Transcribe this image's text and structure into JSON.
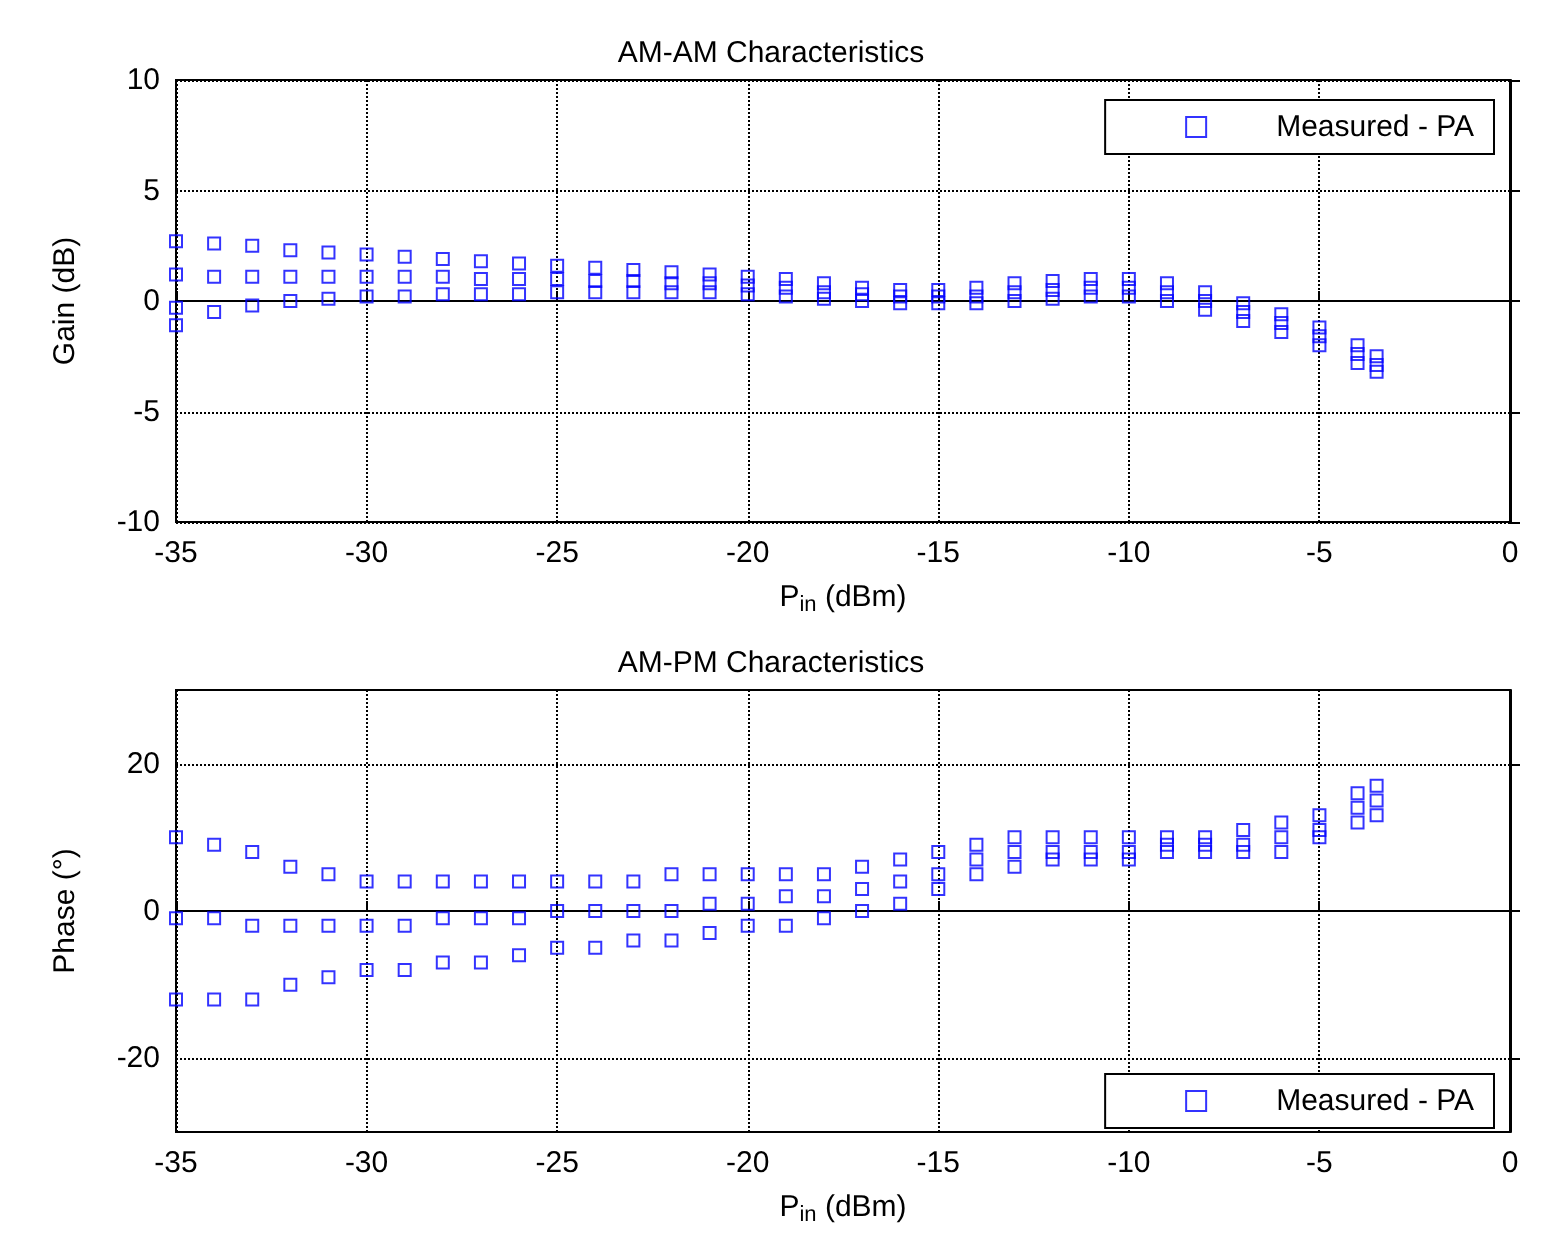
{
  "chart_data": [
    {
      "type": "scatter",
      "title": "AM-AM Characteristics",
      "xlabel": "P$_{in}$ (dBm)",
      "ylabel": "Gain (dB)",
      "xlim": [
        -35,
        0
      ],
      "xticks": [
        -35,
        -30,
        -25,
        -20,
        -15,
        -10,
        -5,
        0
      ],
      "ylim": [
        -10,
        10
      ],
      "yticks": [
        -10,
        -5,
        0,
        5,
        10
      ],
      "grid": true,
      "legend": "top right",
      "marker": "square",
      "series": [
        {
          "name": "Measured - PA",
          "color": "#0000ff",
          "x": [
            -35,
            -35,
            -35,
            -35,
            -34,
            -34,
            -34,
            -33,
            -33,
            -33,
            -32,
            -32,
            -32,
            -31,
            -31,
            -31,
            -30,
            -30,
            -30,
            -29,
            -29,
            -29,
            -28,
            -28,
            -28,
            -27,
            -27,
            -27,
            -26,
            -26,
            -26,
            -25,
            -25,
            -25,
            -24,
            -24,
            -24,
            -23,
            -23,
            -23,
            -22,
            -22,
            -22,
            -21,
            -21,
            -21,
            -20,
            -20,
            -20,
            -19,
            -19,
            -19,
            -18,
            -18,
            -18,
            -17,
            -17,
            -17,
            -16,
            -16,
            -16,
            -15,
            -15,
            -15,
            -14,
            -14,
            -14,
            -13,
            -13,
            -13,
            -12,
            -12,
            -12,
            -11,
            -11,
            -11,
            -10,
            -10,
            -10,
            -9,
            -9,
            -9,
            -8,
            -8,
            -8,
            -7,
            -7,
            -7,
            -6,
            -6,
            -6,
            -5,
            -5,
            -5,
            -4,
            -4,
            -4,
            -3.5,
            -3.5,
            -3.5
          ],
          "values": [
            -1.1,
            -0.3,
            1.2,
            2.7,
            -0.5,
            1.1,
            2.6,
            -0.2,
            1.1,
            2.5,
            0,
            1.1,
            2.3,
            0.1,
            1.1,
            2.2,
            0.2,
            1.1,
            2.1,
            0.2,
            1.1,
            2.0,
            0.3,
            1.1,
            1.9,
            0.3,
            1.0,
            1.8,
            0.3,
            1.0,
            1.7,
            0.4,
            1.0,
            1.6,
            0.4,
            0.9,
            1.5,
            0.4,
            0.9,
            1.4,
            0.4,
            0.8,
            1.3,
            0.4,
            0.8,
            1.2,
            0.3,
            0.7,
            1.1,
            0.2,
            0.6,
            1.0,
            0.1,
            0.4,
            0.8,
            0,
            0.3,
            0.6,
            -0.1,
            0.2,
            0.5,
            -0.1,
            0.2,
            0.5,
            -0.1,
            0.2,
            0.6,
            0,
            0.4,
            0.8,
            0.1,
            0.5,
            0.9,
            0.2,
            0.6,
            1.0,
            0.2,
            0.6,
            1.0,
            0,
            0.4,
            0.8,
            -0.4,
            0,
            0.4,
            -0.9,
            -0.5,
            -0.1,
            -1.4,
            -1.0,
            -0.6,
            -2.0,
            -1.6,
            -1.2,
            -2.8,
            -2.4,
            -2.0,
            -3.2,
            -2.9,
            -2.5
          ]
        }
      ]
    },
    {
      "type": "scatter",
      "title": "AM-PM Characteristics",
      "xlabel": "P$_{in}$ (dBm)",
      "ylabel": "Phase (°)",
      "xlim": [
        -35,
        0
      ],
      "xticks": [
        -35,
        -30,
        -25,
        -20,
        -15,
        -10,
        -5,
        0
      ],
      "ylim": [
        -30,
        30
      ],
      "yticks": [
        -20,
        0,
        20
      ],
      "grid": true,
      "legend": "bottom right",
      "marker": "square",
      "series": [
        {
          "name": "Measured - PA",
          "color": "#0000ff",
          "x": [
            -35,
            -35,
            -35,
            -34,
            -34,
            -34,
            -33,
            -33,
            -33,
            -32,
            -32,
            -32,
            -31,
            -31,
            -31,
            -30,
            -30,
            -30,
            -29,
            -29,
            -29,
            -28,
            -28,
            -28,
            -27,
            -27,
            -27,
            -26,
            -26,
            -26,
            -25,
            -25,
            -25,
            -24,
            -24,
            -24,
            -23,
            -23,
            -23,
            -22,
            -22,
            -22,
            -21,
            -21,
            -21,
            -20,
            -20,
            -20,
            -19,
            -19,
            -19,
            -18,
            -18,
            -18,
            -17,
            -17,
            -17,
            -16,
            -16,
            -16,
            -15,
            -15,
            -15,
            -14,
            -14,
            -14,
            -13,
            -13,
            -13,
            -12,
            -12,
            -12,
            -11,
            -11,
            -11,
            -10,
            -10,
            -10,
            -9,
            -9,
            -9,
            -8,
            -8,
            -8,
            -7,
            -7,
            -7,
            -6,
            -6,
            -6,
            -5,
            -5,
            -5,
            -4,
            -4,
            -4,
            -3.5,
            -3.5,
            -3.5
          ],
          "values": [
            -12,
            -1,
            10,
            -12,
            -1,
            9,
            -12,
            -2,
            8,
            -10,
            -2,
            6,
            -9,
            -2,
            5,
            -8,
            -2,
            4,
            -8,
            -2,
            4,
            -7,
            -1,
            4,
            -7,
            -1,
            4,
            -6,
            -1,
            4,
            -5,
            0,
            4,
            -5,
            0,
            4,
            -4,
            0,
            4,
            -4,
            0,
            5,
            -3,
            1,
            5,
            -2,
            1,
            5,
            -2,
            2,
            5,
            -1,
            2,
            5,
            0,
            3,
            6,
            1,
            4,
            7,
            3,
            5,
            8,
            5,
            7,
            9,
            6,
            8,
            10,
            7,
            8,
            10,
            7,
            8,
            10,
            7,
            8,
            10,
            8,
            9,
            10,
            8,
            9,
            10,
            8,
            9,
            11,
            8,
            10,
            12,
            10,
            11,
            13,
            12,
            14,
            16,
            13,
            15,
            17
          ]
        }
      ]
    }
  ]
}
